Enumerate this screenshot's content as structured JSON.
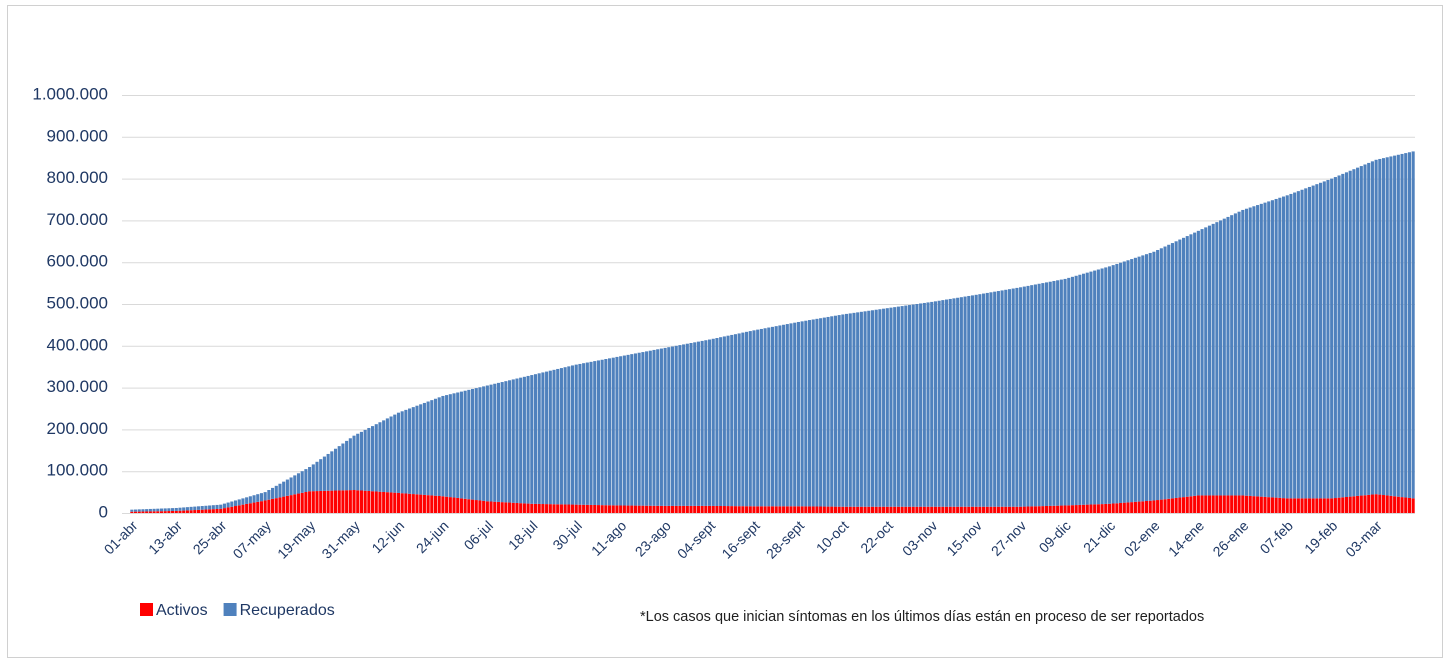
{
  "chart_data": {
    "type": "stacked_bar",
    "note": "*Los casos que inician síntomas en los últimos días están en proceso de ser reportados",
    "ylim": [
      0,
      1000000
    ],
    "yticks": [
      0,
      {
        "value": 100000,
        "label": "100.000"
      },
      {
        "value": 200000,
        "label": "200.000"
      },
      {
        "value": 300000,
        "label": "300.000"
      },
      {
        "value": 400000,
        "label": "400.000"
      },
      {
        "value": 500000,
        "label": "500.000"
      },
      {
        "value": 600000,
        "label": "600.000"
      },
      {
        "value": 700000,
        "label": "700.000"
      },
      {
        "value": 800000,
        "label": "800.000"
      },
      {
        "value": 900000,
        "label": "900.000"
      },
      {
        "value": 1000000,
        "label": "1.000.000"
      }
    ],
    "grid": true,
    "legend": "bottom-left",
    "categories": [
      "01-abr",
      null,
      null,
      null,
      null,
      null,
      null,
      null,
      null,
      null,
      null,
      null,
      "13-abr",
      null,
      null,
      null,
      null,
      null,
      null,
      null,
      null,
      null,
      null,
      null,
      "25-abr",
      null,
      null,
      null,
      null,
      null,
      null,
      null,
      null,
      null,
      null,
      null,
      "07-may",
      null,
      null,
      null,
      null,
      null,
      null,
      null,
      null,
      null,
      null,
      null,
      "19-may",
      null,
      null,
      null,
      null,
      null,
      null,
      null,
      null,
      null,
      null,
      null,
      "31-may",
      null,
      null,
      null,
      null,
      null,
      null,
      null,
      null,
      null,
      null,
      null,
      "12-jun",
      null,
      null,
      null,
      null,
      null,
      null,
      null,
      null,
      null,
      null,
      null,
      "24-jun",
      null,
      null,
      null,
      null,
      null,
      null,
      null,
      null,
      null,
      null,
      null,
      "06-jul",
      null,
      null,
      null,
      null,
      null,
      null,
      null,
      null,
      null,
      null,
      null,
      "18-jul",
      null,
      null,
      null,
      null,
      null,
      null,
      null,
      null,
      null,
      null,
      null,
      "30-jul",
      null,
      null,
      null,
      null,
      null,
      null,
      null,
      null,
      null,
      null,
      null,
      "11-ago",
      null,
      null,
      null,
      null,
      null,
      null,
      null,
      null,
      null,
      null,
      null,
      "23-ago",
      null,
      null,
      null,
      null,
      null,
      null,
      null,
      null,
      null,
      null,
      null,
      "04-sept",
      null,
      null,
      null,
      null,
      null,
      null,
      null,
      null,
      null,
      null,
      null,
      "16-sept",
      null,
      null,
      null,
      null,
      null,
      null,
      null,
      null,
      null,
      null,
      null,
      "28-sept",
      null,
      null,
      null,
      null,
      null,
      null,
      null,
      null,
      null,
      null,
      null,
      "10-oct",
      null,
      null,
      null,
      null,
      null,
      null,
      null,
      null,
      null,
      null,
      null,
      "22-oct",
      null,
      null,
      null,
      null,
      null,
      null,
      null,
      null,
      null,
      null,
      null,
      "03-nov",
      null,
      null,
      null,
      null,
      null,
      null,
      null,
      null,
      null,
      null,
      null,
      "15-nov",
      null,
      null,
      null,
      null,
      null,
      null,
      null,
      null,
      null,
      null,
      null,
      "27-nov",
      null,
      null,
      null,
      null,
      null,
      null,
      null,
      null,
      null,
      null,
      null,
      "09-dic",
      null,
      null,
      null,
      null,
      null,
      null,
      null,
      null,
      null,
      null,
      null,
      "21-dic",
      null,
      null,
      null,
      null,
      null,
      null,
      null,
      null,
      null,
      null,
      null,
      "02-ene",
      null,
      null,
      null,
      null,
      null,
      null,
      null,
      null,
      null,
      null,
      null,
      "14-ene",
      null,
      null,
      null,
      null,
      null,
      null,
      null,
      null,
      null,
      null,
      null,
      "26-ene",
      null,
      null,
      null,
      null,
      null,
      null,
      null,
      null,
      null,
      null,
      null,
      "07-feb",
      null,
      null,
      null,
      null,
      null,
      null,
      null,
      null,
      null,
      null,
      null,
      "19-feb",
      null,
      null,
      null,
      null,
      null,
      null,
      null,
      null,
      null,
      null,
      null,
      "03-mar",
      null,
      null,
      null,
      null,
      null,
      null,
      null,
      null,
      null,
      null
    ],
    "series": [
      {
        "name": "Activos",
        "color": "#ff0000",
        "values": [
          3000,
          3200,
          3300,
          3500,
          3700,
          3800,
          4000,
          4200,
          4300,
          4500,
          4700,
          4800,
          5000,
          5400,
          5800,
          6300,
          6700,
          7100,
          7500,
          7900,
          8300,
          8800,
          9200,
          9600,
          10000,
          11700,
          13300,
          15000,
          16700,
          18300,
          20000,
          21700,
          23300,
          25000,
          26700,
          28300,
          30000,
          31800,
          33700,
          35500,
          37300,
          39200,
          41000,
          42800,
          44700,
          46500,
          48300,
          50200,
          52000,
          52250,
          52500,
          52750,
          53000,
          53250,
          53500,
          53750,
          54000,
          54250,
          54500,
          54750,
          55000,
          54400,
          53800,
          53300,
          52700,
          52100,
          51500,
          50900,
          50300,
          49800,
          49200,
          48600,
          48000,
          47300,
          46700,
          46000,
          45300,
          44700,
          44000,
          43300,
          42700,
          42000,
          41300,
          40700,
          40000,
          39000,
          38000,
          37000,
          36000,
          35000,
          34000,
          33000,
          32000,
          31000,
          30000,
          29000,
          28000,
          27500,
          27000,
          26500,
          26000,
          25500,
          25000,
          24500,
          24000,
          23500,
          23000,
          22500,
          22000,
          21800,
          21700,
          21500,
          21300,
          21200,
          21000,
          20800,
          20700,
          20500,
          20300,
          20200,
          20000,
          19800,
          19700,
          19500,
          19300,
          19200,
          19000,
          18800,
          18700,
          18500,
          18300,
          18200,
          18000,
          17900,
          17800,
          17800,
          17700,
          17600,
          17500,
          17400,
          17300,
          17300,
          17200,
          17100,
          17000,
          17000,
          17000,
          17000,
          17000,
          17000,
          17000,
          17000,
          17000,
          17000,
          17000,
          17000,
          17000,
          16900,
          16800,
          16800,
          16700,
          16600,
          16500,
          16400,
          16300,
          16300,
          16200,
          16100,
          16000,
          16000,
          16000,
          16000,
          16000,
          16000,
          16000,
          16000,
          16000,
          16000,
          16000,
          16000,
          16000,
          15900,
          15800,
          15800,
          15700,
          15600,
          15500,
          15400,
          15300,
          15300,
          15200,
          15100,
          15000,
          15000,
          15000,
          15000,
          15000,
          15000,
          15000,
          15000,
          15000,
          15000,
          15000,
          15000,
          15000,
          15000,
          15000,
          15000,
          15000,
          15000,
          15000,
          15000,
          15000,
          15000,
          15000,
          15000,
          15000,
          15000,
          15000,
          15000,
          15000,
          15000,
          15000,
          15000,
          15000,
          15000,
          15000,
          15000,
          15000,
          15000,
          15000,
          15000,
          15000,
          15000,
          15000,
          15000,
          15000,
          15000,
          15000,
          15000,
          15000,
          15300,
          15500,
          15800,
          16000,
          16300,
          16500,
          16800,
          17000,
          17300,
          17500,
          17800,
          18000,
          18300,
          18700,
          19000,
          19300,
          19700,
          20000,
          20300,
          20700,
          21000,
          21300,
          21700,
          22000,
          22700,
          23300,
          24000,
          24700,
          25300,
          26000,
          26700,
          27300,
          28000,
          28700,
          29300,
          30000,
          31000,
          32000,
          33000,
          34000,
          35000,
          36000,
          37000,
          38000,
          39000,
          40000,
          41000,
          42000,
          42000,
          42000,
          42000,
          42000,
          42000,
          42000,
          42000,
          42000,
          42000,
          42000,
          42000,
          42000,
          41400,
          40800,
          40300,
          39700,
          39100,
          38500,
          37900,
          37300,
          36800,
          36200,
          35600,
          35000,
          35000,
          35000,
          35000,
          35000,
          35000,
          35000,
          35000,
          35000,
          35000,
          35000,
          35000,
          35000,
          35800,
          36700,
          37500,
          38300,
          39200,
          40000,
          40800,
          41700,
          42500,
          43300,
          44200,
          45000,
          44000,
          43000,
          42000,
          41000,
          40000,
          39000,
          38000,
          37000,
          36000,
          35000
        ]
      },
      {
        "name": "Recuperados",
        "color": "#4f81bd",
        "values": [
          5000,
          5100,
          5400,
          5500,
          5600,
          5900,
          6000,
          6100,
          6400,
          6500,
          6600,
          6900,
          7000,
          7300,
          7500,
          7700,
          8000,
          8200,
          8500,
          8800,
          9000,
          9200,
          9500,
          9700,
          10000,
          10800,
          11700,
          12500,
          13300,
          14200,
          15000,
          15800,
          16700,
          17500,
          18300,
          19200,
          20000,
          23200,
          26300,
          29500,
          32700,
          35800,
          39000,
          42200,
          45300,
          48500,
          51700,
          54800,
          58000,
          64000,
          70000,
          76000,
          82000,
          88000,
          94000,
          100000,
          106000,
          112000,
          118000,
          124000,
          130000,
          135200,
          140300,
          145500,
          150700,
          155800,
          161000,
          166200,
          171300,
          176500,
          181700,
          186800,
          192000,
          196000,
          200000,
          204000,
          208000,
          212000,
          216000,
          220000,
          224000,
          228000,
          232000,
          236000,
          240000,
          243100,
          246200,
          249300,
          252300,
          255400,
          258500,
          261600,
          264700,
          267800,
          270800,
          273900,
          277000,
          279600,
          282200,
          284800,
          287300,
          289900,
          292500,
          295100,
          297700,
          300300,
          302800,
          305400,
          308000,
          310300,
          312500,
          314800,
          317000,
          319300,
          321500,
          323800,
          326000,
          328300,
          330500,
          332800,
          335000,
          336800,
          338700,
          340500,
          342300,
          344200,
          346000,
          347800,
          349700,
          351500,
          353300,
          355200,
          357000,
          358800,
          360500,
          362300,
          364000,
          365800,
          367500,
          369300,
          371000,
          372800,
          374500,
          376300,
          378000,
          379700,
          381300,
          383000,
          384700,
          386300,
          388000,
          389700,
          391300,
          393000,
          394700,
          396300,
          398000,
          399900,
          401800,
          403800,
          405700,
          407600,
          409500,
          411400,
          413300,
          415300,
          417200,
          419100,
          421000,
          422700,
          424300,
          426000,
          427700,
          429300,
          431000,
          432700,
          434300,
          436000,
          437700,
          439300,
          441000,
          442600,
          444200,
          445800,
          447300,
          448900,
          450500,
          452100,
          453700,
          455300,
          456800,
          458400,
          460000,
          461300,
          462500,
          463800,
          465000,
          466300,
          467500,
          468800,
          470000,
          471300,
          472500,
          473800,
          475000,
          476300,
          477500,
          478800,
          480000,
          481300,
          482500,
          483800,
          485000,
          486300,
          487500,
          488800,
          490000,
          491400,
          492800,
          494300,
          495700,
          497100,
          498500,
          499900,
          501300,
          502800,
          504200,
          505600,
          507000,
          508500,
          510000,
          511500,
          513000,
          514500,
          516000,
          517500,
          519000,
          520500,
          522000,
          523500,
          525000,
          526400,
          527800,
          529300,
          530700,
          532100,
          533500,
          534900,
          536300,
          537800,
          539200,
          540600,
          542000,
          544200,
          546300,
          548500,
          550700,
          552800,
          555000,
          557200,
          559300,
          561500,
          563700,
          565800,
          568000,
          570300,
          572500,
          574800,
          577000,
          579300,
          581500,
          583800,
          586000,
          588300,
          590500,
          592800,
          595000,
          598200,
          601300,
          604500,
          607700,
          610800,
          614000,
          617200,
          620300,
          623500,
          626700,
          629800,
          633000,
          637200,
          641300,
          645500,
          649700,
          653800,
          658000,
          662200,
          666300,
          670500,
          674700,
          678800,
          683000,
          686500,
          690000,
          693500,
          697000,
          700500,
          704000,
          707500,
          711000,
          714500,
          718000,
          721500,
          725000,
          728300,
          731700,
          735000,
          738300,
          741700,
          745000,
          748300,
          751700,
          755000,
          758300,
          761700,
          765000,
          767900,
          770800,
          773800,
          776700,
          779600,
          782500,
          785400,
          788300,
          791300,
          794200,
          797100,
          800000,
          803000,
          806000,
          809000,
          812000,
          815000,
          818000,
          821000,
          824000,
          827000,
          830000
        ]
      }
    ]
  }
}
